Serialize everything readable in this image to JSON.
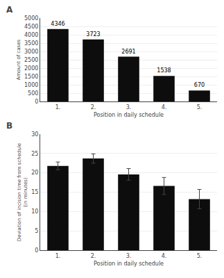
{
  "chart_data": [
    {
      "type": "bar",
      "title": "A",
      "categories": [
        "1.",
        "2.",
        "3.",
        "4.",
        "5."
      ],
      "values": [
        4346,
        3723,
        2691,
        1538,
        670
      ],
      "data_labels": true,
      "color": "#0d0d0d",
      "ylim": [
        0,
        5000
      ],
      "yticks": [
        0,
        500,
        1000,
        1500,
        2000,
        2500,
        3000,
        3500,
        4000,
        4500,
        5000
      ],
      "ylabel": "Amount of cases",
      "xlabel": "Position in daily schedule",
      "grid": true
    },
    {
      "type": "bar",
      "title": "B",
      "categories": [
        "1.",
        "2.",
        "3.",
        "4.",
        "5."
      ],
      "values": [
        21.8,
        23.7,
        19.6,
        16.6,
        13.2
      ],
      "errors": [
        1.0,
        1.2,
        1.5,
        2.2,
        2.5
      ],
      "color": "#0d0d0d",
      "ylim": [
        0,
        30
      ],
      "yticks": [
        0,
        5,
        10,
        15,
        20,
        25,
        30
      ],
      "ylabel": "Deviation of incision time from schedule\n(in minutes)",
      "xlabel": "Position in daily schedule",
      "grid": true
    }
  ]
}
